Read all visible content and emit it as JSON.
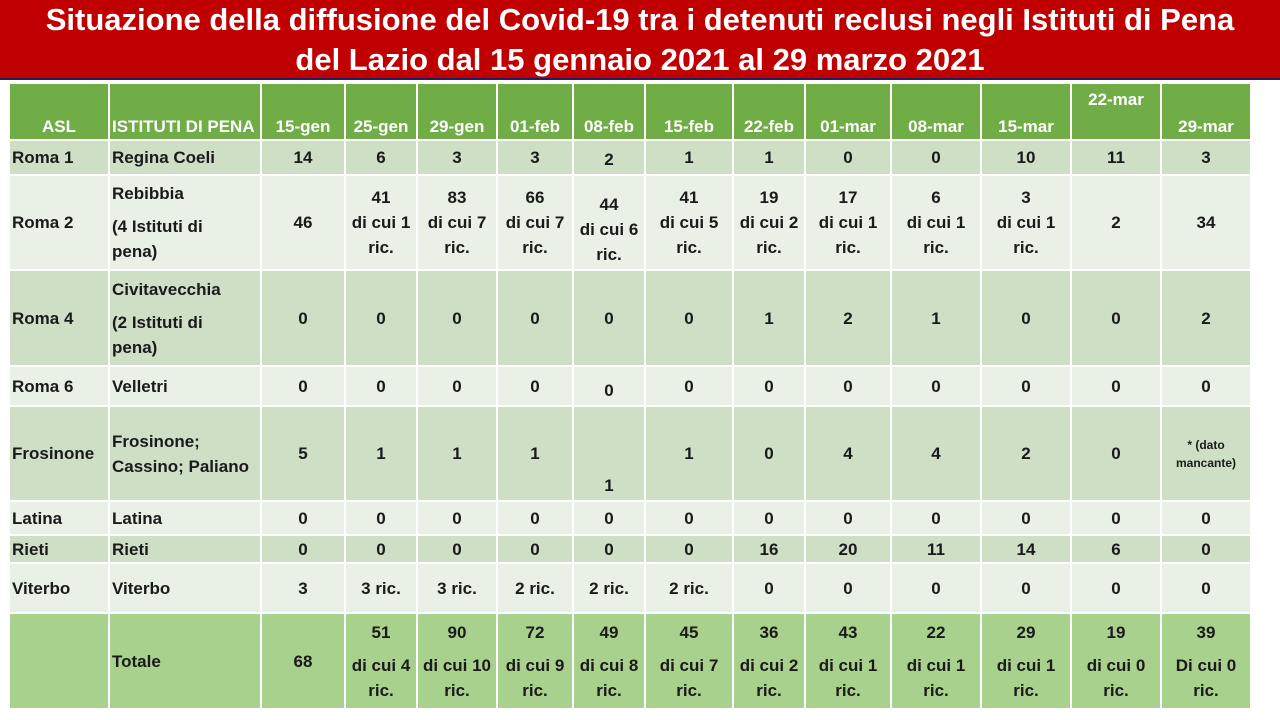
{
  "title": {
    "line1": "Situazione della diffusione del Covid-19 tra i detenuti reclusi negli Istituti di Pena",
    "line2": "del Lazio dal 15 gennaio 2021 al 29 marzo 2021"
  },
  "colors": {
    "title_bg": "#c00000",
    "header_bg": "#70ad47",
    "row_dark": "#cfdfc6",
    "row_light": "#e9f0e5",
    "total_bg": "#a9d18e"
  },
  "headers": [
    "ASL",
    "ISTITUTI DI PENA",
    "15-gen",
    "25-gen",
    "29-gen",
    "01-feb",
    "08-feb",
    "15-feb",
    "22-feb",
    "01-mar",
    "08-mar",
    "15-mar",
    "22-mar",
    "29-mar"
  ],
  "rows": {
    "roma1": {
      "asl": "Roma 1",
      "ist": "Regina Coeli",
      "v": [
        "14",
        "6",
        "3",
        "3",
        "2",
        "1",
        "1",
        "0",
        "0",
        "10",
        "11",
        "3"
      ]
    },
    "roma2": {
      "asl": "Roma 2",
      "ist1": "Rebibbia",
      "ist2": "(4 Istituti di",
      "ist3": "pena)",
      "c15gen": "46",
      "c25gen": [
        "41",
        "di cui 1",
        "ric."
      ],
      "c29gen": [
        "83",
        "di cui 7",
        "ric."
      ],
      "c01feb": [
        "66",
        "di cui 7",
        "ric."
      ],
      "c08feb": [
        "44",
        "di cui 6",
        "ric."
      ],
      "c15feb": [
        "41",
        "di cui 5",
        "ric."
      ],
      "c22feb": [
        "19",
        "di cui 2",
        "ric."
      ],
      "c01mar": [
        "17",
        "di cui 1",
        "ric."
      ],
      "c08mar": [
        "6",
        "di cui 1",
        "ric."
      ],
      "c15mar": [
        "3",
        "di cui 1",
        "ric."
      ],
      "c22mar": "2",
      "c29mar": "34"
    },
    "roma4": {
      "asl": "Roma 4",
      "ist1": "Civitavecchia",
      "ist2": "(2 Istituti di",
      "ist3": "pena)",
      "v": [
        "0",
        "0",
        "0",
        "0",
        "0",
        "0",
        "1",
        "2",
        "1",
        "0",
        "0",
        "2"
      ]
    },
    "roma6": {
      "asl": "Roma 6",
      "ist": "Velletri",
      "v": [
        "0",
        "0",
        "0",
        "0",
        "0",
        "0",
        "0",
        "0",
        "0",
        "0",
        "0",
        "0"
      ]
    },
    "frosinone": {
      "asl": "Frosinone",
      "ist1": "Frosinone;",
      "ist2": "Cassino;  Paliano",
      "v": [
        "5",
        "1",
        "1",
        "1",
        "1",
        "1",
        "0",
        "4",
        "4",
        "2",
        "0"
      ],
      "c29mar_1": "* (dato",
      "c29mar_2": "mancante)"
    },
    "latina": {
      "asl": "Latina",
      "ist": "Latina",
      "v": [
        "0",
        "0",
        "0",
        "0",
        "0",
        "0",
        "0",
        "0",
        "0",
        "0",
        "0",
        "0"
      ]
    },
    "rieti": {
      "asl": "Rieti",
      "ist": "Rieti",
      "v": [
        "0",
        "0",
        "0",
        "0",
        "0",
        "0",
        "16",
        "20",
        "11",
        "14",
        "6",
        "0"
      ]
    },
    "viterbo": {
      "asl": "Viterbo",
      "ist": "Viterbo",
      "v": [
        "3",
        "3 ric.",
        "3 ric.",
        "2 ric.",
        "2 ric.",
        "2 ric.",
        "0",
        "0",
        "0",
        "0",
        "0",
        "0"
      ]
    },
    "totale": {
      "label": "Totale",
      "c15gen": "68",
      "c25gen": [
        "51",
        "di cui   4",
        "ric."
      ],
      "c29gen": [
        "90",
        "di cui 10",
        "ric."
      ],
      "c01feb": [
        "72",
        "di cui 9",
        "ric."
      ],
      "c08feb": [
        "49",
        "di cui 8",
        "ric."
      ],
      "c15feb": [
        "45",
        "di cui 7",
        "ric."
      ],
      "c22feb": [
        "36",
        "di cui 2",
        "ric."
      ],
      "c01mar": [
        "43",
        "di cui 1",
        "ric."
      ],
      "c08mar": [
        "22",
        "di cui 1",
        "ric."
      ],
      "c15mar": [
        "29",
        "di cui 1",
        "ric."
      ],
      "c22mar": [
        "19",
        "di cui 0",
        "ric."
      ],
      "c29mar": [
        "39",
        "Di cui 0",
        "ric."
      ]
    }
  }
}
